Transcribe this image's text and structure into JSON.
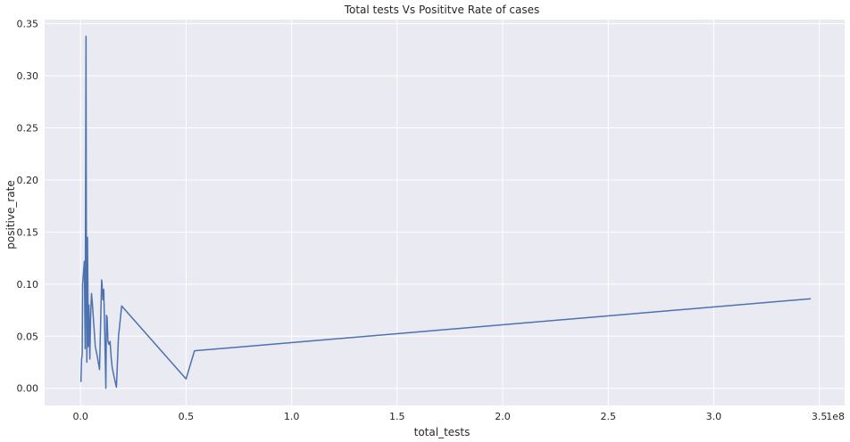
{
  "chart_data": {
    "type": "line",
    "title": "Total tests Vs Posititve Rate of cases",
    "xlabel": "total_tests",
    "ylabel": "positive_rate",
    "x_offset_label": "1e8",
    "xlim": [
      -0.17,
      3.62
    ],
    "ylim": [
      -0.0165,
      0.354
    ],
    "x_ticks": [
      0.0,
      0.5,
      1.0,
      1.5,
      2.0,
      2.5,
      3.0,
      3.5
    ],
    "x_tick_labels": [
      "0.0",
      "0.5",
      "1.0",
      "1.5",
      "2.0",
      "2.5",
      "3.0",
      "3.5"
    ],
    "y_ticks": [
      0.0,
      0.05,
      0.1,
      0.15,
      0.2,
      0.25,
      0.3,
      0.35
    ],
    "y_tick_labels": [
      "0.00",
      "0.05",
      "0.10",
      "0.15",
      "0.20",
      "0.25",
      "0.30",
      "0.35"
    ],
    "grid": true,
    "background": "#eaeaf2",
    "grid_color": "#ffffff",
    "line_color": "#4c72b0",
    "series": [
      {
        "x": [
          0.002,
          0.005,
          0.008,
          0.01,
          0.018,
          0.022,
          0.026,
          0.028,
          0.03,
          0.033,
          0.037,
          0.04,
          0.044,
          0.048,
          0.052,
          0.056,
          0.06,
          0.065,
          0.07,
          0.08,
          0.09,
          0.1,
          0.102,
          0.106,
          0.11,
          0.115,
          0.12,
          0.123,
          0.126,
          0.13,
          0.135,
          0.14,
          0.145,
          0.15,
          0.16,
          0.17,
          0.18,
          0.195,
          0.5,
          0.54,
          3.46
        ],
        "y": [
          0.006,
          0.028,
          0.032,
          0.1,
          0.122,
          0.038,
          0.338,
          0.1,
          0.025,
          0.145,
          0.04,
          0.08,
          0.028,
          0.07,
          0.091,
          0.082,
          0.07,
          0.055,
          0.04,
          0.03,
          0.018,
          0.104,
          0.1,
          0.085,
          0.095,
          0.05,
          0.0,
          0.07,
          0.068,
          0.045,
          0.042,
          0.045,
          0.03,
          0.02,
          0.01,
          0.001,
          0.05,
          0.079,
          0.009,
          0.036,
          0.086
        ]
      }
    ]
  }
}
